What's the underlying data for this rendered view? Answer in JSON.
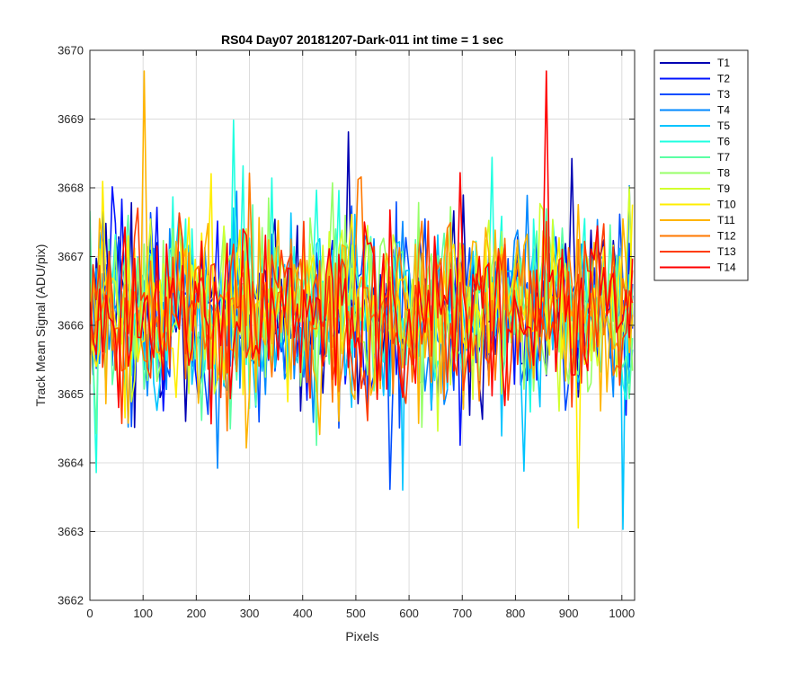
{
  "chart_data": {
    "type": "line",
    "title": "RS04 Day07 20181207-Dark-011 int time = 1 sec",
    "xlabel": "Pixels",
    "ylabel": "Track Mean Signal (ADU/pix)",
    "xlim": [
      0,
      1024
    ],
    "ylim": [
      3662,
      3670
    ],
    "xticks": [
      0,
      100,
      200,
      300,
      400,
      500,
      600,
      700,
      800,
      900,
      1000
    ],
    "yticks": [
      3662,
      3663,
      3664,
      3665,
      3666,
      3667,
      3668,
      3669,
      3670
    ],
    "grid": true,
    "legend_position": "outside-top-right",
    "noise_model": {
      "x_start": 0,
      "x_end": 1023,
      "x_step": 6,
      "center": 3666.2,
      "spread": 0.9,
      "max_deviation": 3.5
    },
    "series": [
      {
        "name": "T1",
        "color": "#0000b3"
      },
      {
        "name": "T2",
        "color": "#0012ff"
      },
      {
        "name": "T3",
        "color": "#004dff"
      },
      {
        "name": "T4",
        "color": "#0088ff"
      },
      {
        "name": "T5",
        "color": "#00c4ff"
      },
      {
        "name": "T6",
        "color": "#1fffe0"
      },
      {
        "name": "T7",
        "color": "#5bffa4"
      },
      {
        "name": "T8",
        "color": "#97ff68"
      },
      {
        "name": "T9",
        "color": "#d2ff2d"
      },
      {
        "name": "T10",
        "color": "#ffee00"
      },
      {
        "name": "T11",
        "color": "#ffb400"
      },
      {
        "name": "T12",
        "color": "#ff7800"
      },
      {
        "name": "T13",
        "color": "#ff3c00"
      },
      {
        "name": "T14",
        "color": "#ff0000"
      }
    ]
  }
}
